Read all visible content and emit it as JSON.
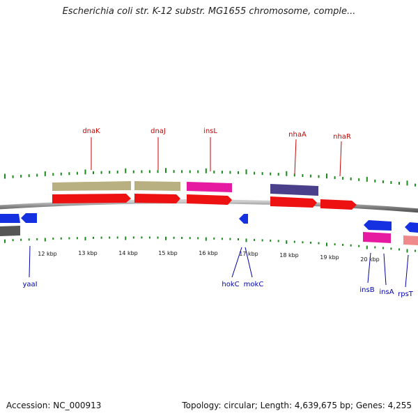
{
  "title": "Escherichia coli str. K-12 substr. MG1655 chromosome, comple...",
  "footer": {
    "accession": "Accession: NC_000913",
    "stats": "Topology: circular; Length: 4,639,675 bp; Genes: 4,255"
  },
  "colors": {
    "backbone": "#8c8c8c",
    "tick": "#1a8a1a",
    "forward_label": "#cc0000",
    "reverse_label": "#0000aa",
    "cds": "#ee1111",
    "gene_blue": "#1530e0",
    "khaki": "#b8b080",
    "magenta": "#e51aa0",
    "purple": "#4a3f8a",
    "gray": "#555555",
    "pink": "#f08a8a"
  },
  "scale_labels": [
    "12 kbp",
    "13 kbp",
    "14 kbp",
    "15 kbp",
    "16 kbp",
    "17 kbp",
    "18 kbp",
    "19 kbp",
    "20 kbp"
  ],
  "forward_genes": [
    "dnaK",
    "dnaJ",
    "insL",
    "nhaA",
    "nhaR"
  ],
  "reverse_genes": [
    "yaaI",
    "hokC",
    "mokC",
    "insB",
    "insA",
    "rpsT"
  ]
}
